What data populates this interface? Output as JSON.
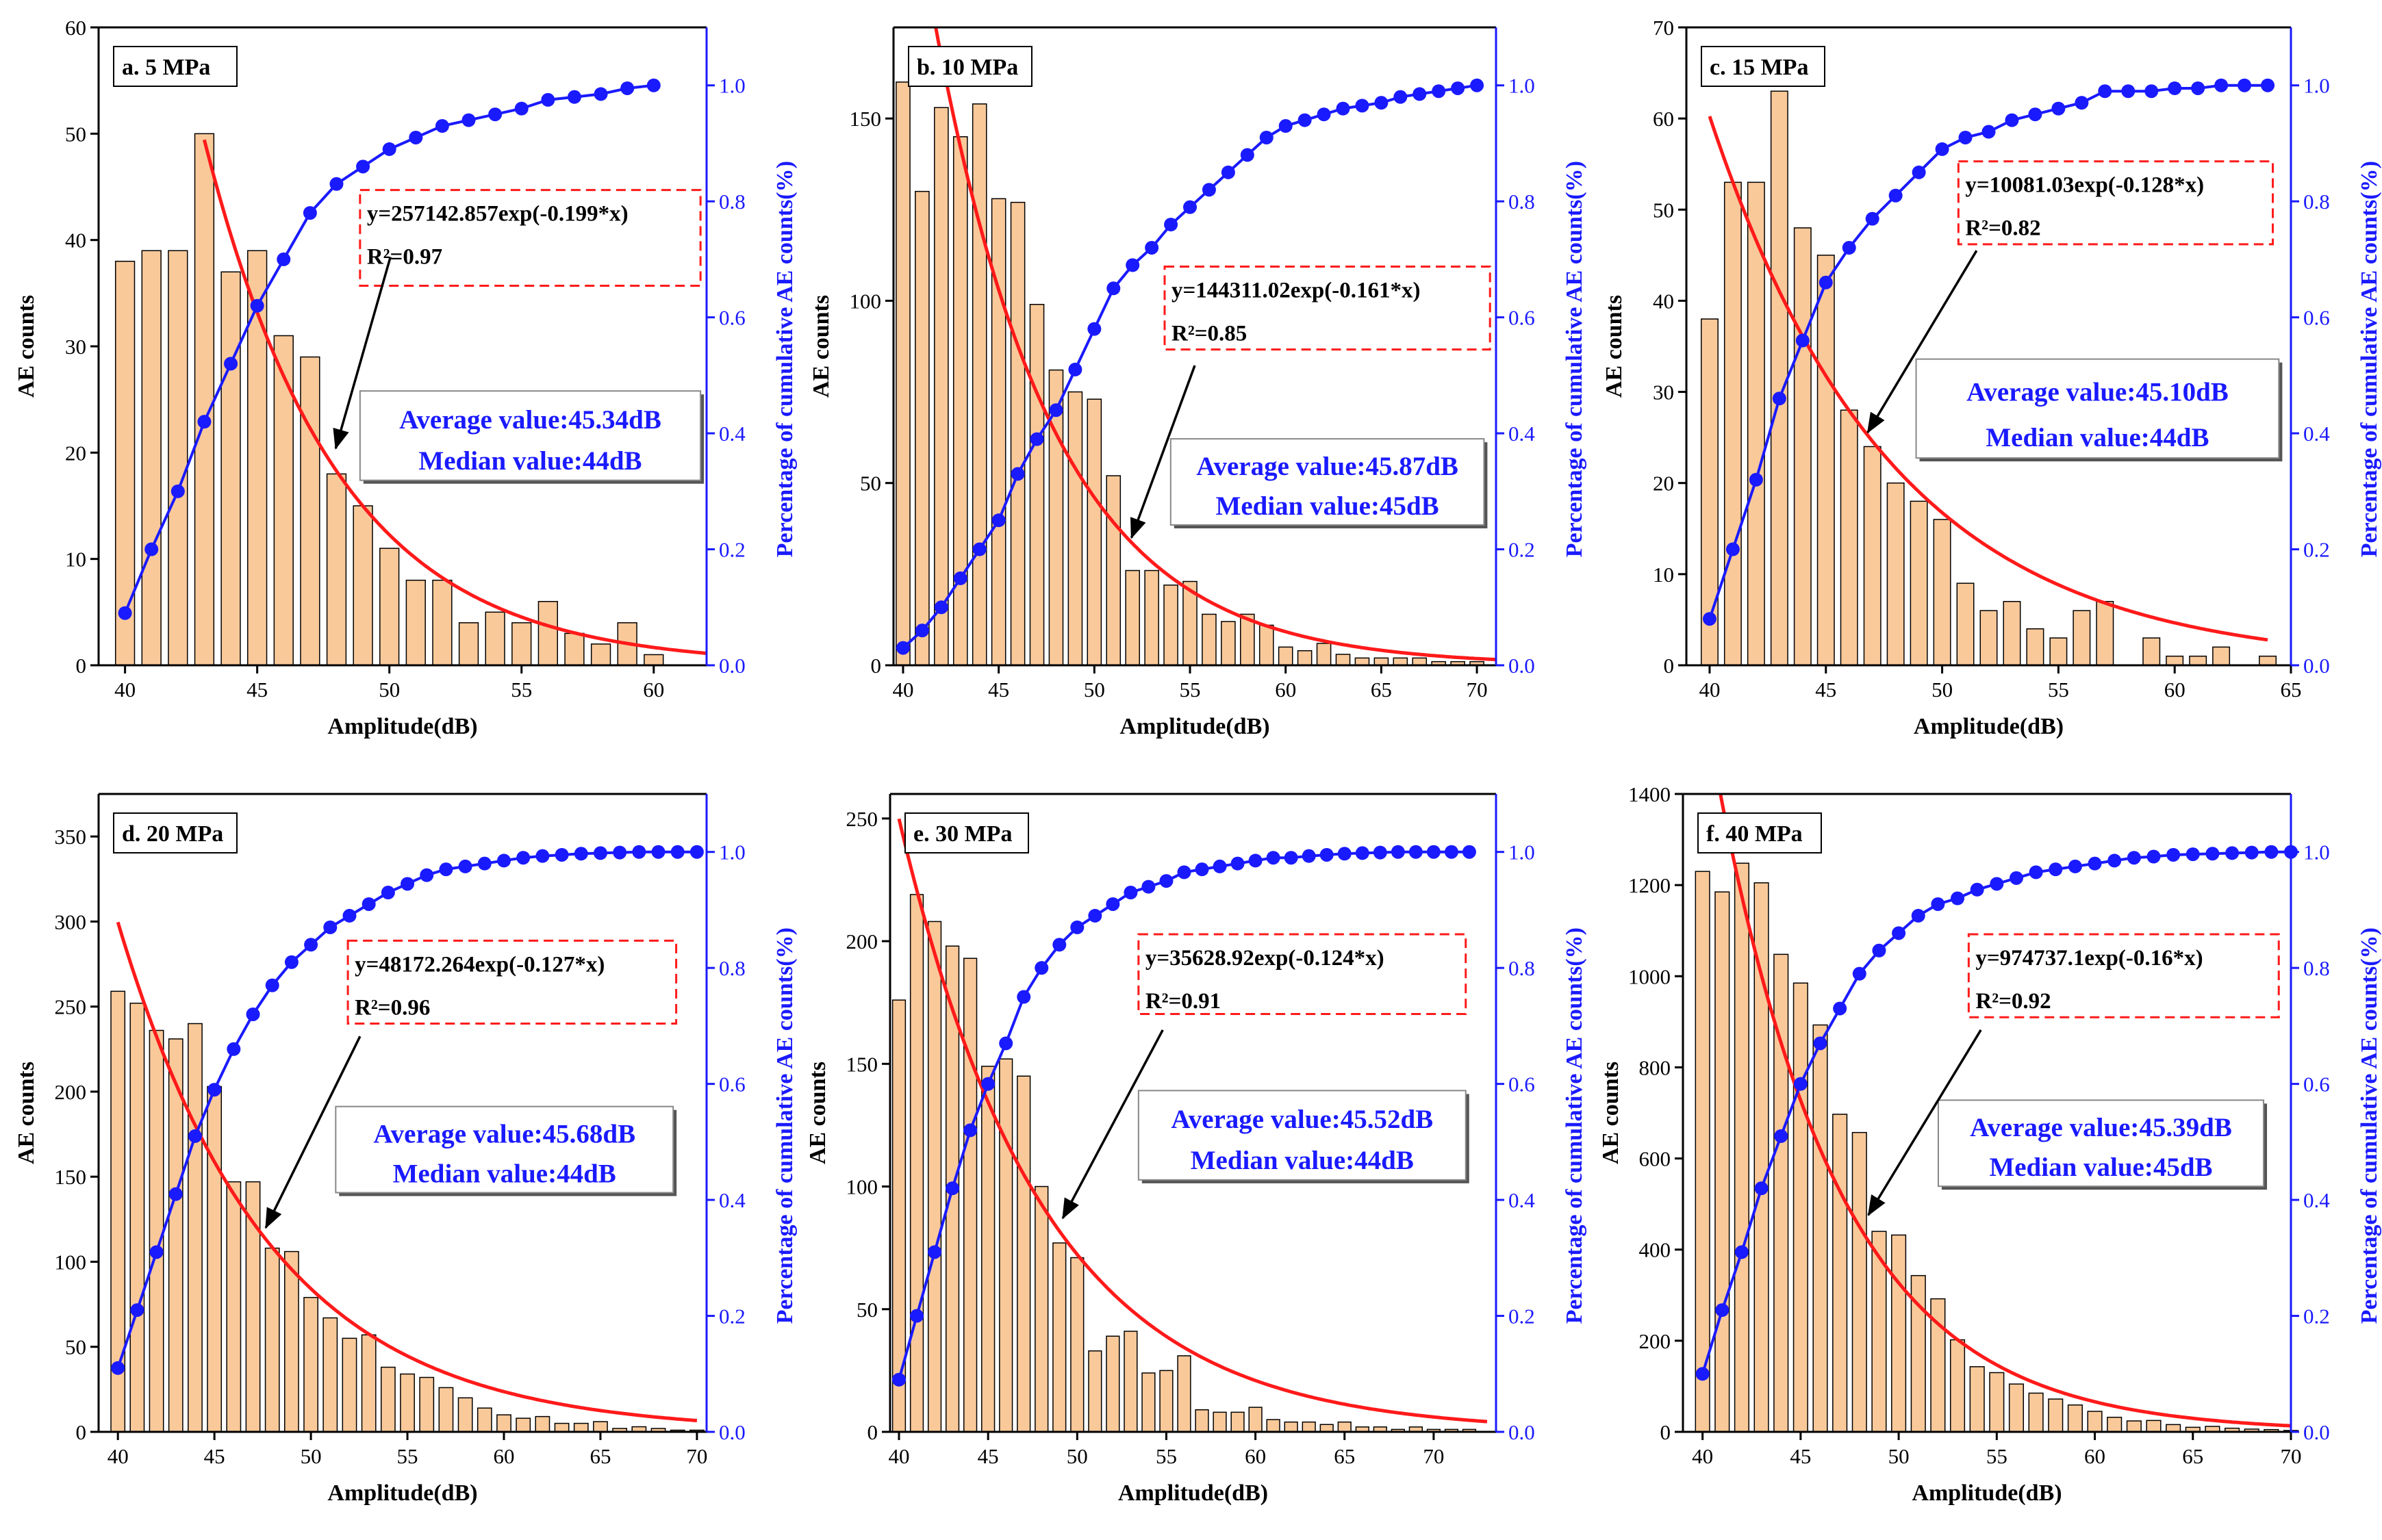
{
  "colors": {
    "bar_fill": "#f9c99a",
    "bar_stroke": "#000000",
    "fit": "#ff1a1a",
    "cumulative": "#1a1aff"
  },
  "chart_data": [
    {
      "type": "bar",
      "label": "a. 5 MPa",
      "xlabel": "Amplitude(dB)",
      "ylabel": "AE counts",
      "y2label": "Percentage of cumulative AE counts(%)",
      "xlim": [
        39,
        62
      ],
      "ylim": [
        0,
        60
      ],
      "y2lim": [
        0,
        1.1
      ],
      "x_ticks": [
        "40",
        "45",
        "50",
        "55",
        "60"
      ],
      "y_ticks": [
        "0",
        "10",
        "20",
        "30",
        "40",
        "50",
        "60"
      ],
      "y2_ticks": [
        "0.0",
        "0.2",
        "0.4",
        "0.6",
        "0.8",
        "1.0"
      ],
      "x": [
        40,
        41,
        42,
        43,
        44,
        45,
        46,
        47,
        48,
        49,
        50,
        51,
        52,
        53,
        54,
        55,
        56,
        57,
        58,
        59,
        60
      ],
      "counts": [
        38,
        39,
        39,
        50,
        37,
        39,
        31,
        29,
        18,
        15,
        11,
        8,
        8,
        4,
        5,
        4,
        6,
        3,
        2,
        4,
        1
      ],
      "cumulative": [
        0.09,
        0.2,
        0.3,
        0.42,
        0.52,
        0.62,
        0.7,
        0.78,
        0.83,
        0.86,
        0.89,
        0.91,
        0.93,
        0.94,
        0.95,
        0.96,
        0.975,
        0.98,
        0.985,
        0.995,
        1.0
      ],
      "fit": {
        "A": 257142.857,
        "b": -0.199,
        "x_range": [
          43,
          62
        ],
        "equation": "y=257142.857exp(-0.199*x)",
        "r2": "R²=0.97"
      },
      "average": "Average value:45.34dB",
      "median": "Median value:44dB"
    },
    {
      "type": "bar",
      "label": "b. 10 MPa",
      "xlabel": "Amplitude(dB)",
      "ylabel": "AE counts",
      "y2label": "Percentage of cumulative AE counts(%)",
      "xlim": [
        39.5,
        71
      ],
      "ylim": [
        0,
        175
      ],
      "y2lim": [
        0,
        1.1
      ],
      "x_ticks": [
        "40",
        "45",
        "50",
        "55",
        "60",
        "65",
        "70"
      ],
      "y_ticks": [
        "0",
        "50",
        "100",
        "150"
      ],
      "y2_ticks": [
        "0.0",
        "0.2",
        "0.4",
        "0.6",
        "0.8",
        "1.0"
      ],
      "x": [
        40,
        41,
        42,
        43,
        44,
        45,
        46,
        47,
        48,
        49,
        50,
        51,
        52,
        53,
        54,
        55,
        56,
        57,
        58,
        59,
        60,
        61,
        62,
        63,
        64,
        65,
        66,
        67,
        68,
        69,
        70
      ],
      "counts": [
        160,
        130,
        153,
        145,
        154,
        128,
        127,
        99,
        81,
        75,
        73,
        52,
        26,
        26,
        22,
        23,
        14,
        12,
        14,
        11,
        5,
        4,
        6,
        3,
        2,
        2,
        2,
        2,
        1,
        1,
        1
      ],
      "cumulative": [
        0.03,
        0.06,
        0.1,
        0.15,
        0.2,
        0.25,
        0.33,
        0.39,
        0.44,
        0.51,
        0.58,
        0.65,
        0.69,
        0.72,
        0.76,
        0.79,
        0.82,
        0.85,
        0.88,
        0.91,
        0.93,
        0.94,
        0.95,
        0.96,
        0.965,
        0.97,
        0.98,
        0.985,
        0.99,
        0.995,
        1.0
      ],
      "fit": {
        "A": 144311.02,
        "b": -0.161,
        "x_range": [
          40,
          71
        ],
        "equation": "y=144311.02exp(-0.161*x)",
        "r2": "R²=0.85"
      },
      "average": "Average value:45.87dB",
      "median": "Median value:45dB"
    },
    {
      "type": "bar",
      "label": "c. 15 MPa",
      "xlabel": "Amplitude(dB)",
      "ylabel": "AE counts",
      "y2label": "Percentage of cumulative AE counts(%)",
      "xlim": [
        39,
        65
      ],
      "ylim": [
        0,
        70
      ],
      "y2lim": [
        0,
        1.1
      ],
      "x_ticks": [
        "40",
        "45",
        "50",
        "55",
        "60",
        "65"
      ],
      "y_ticks": [
        "0",
        "10",
        "20",
        "30",
        "40",
        "50",
        "60",
        "70"
      ],
      "y2_ticks": [
        "0.0",
        "0.2",
        "0.4",
        "0.6",
        "0.8",
        "1.0"
      ],
      "x": [
        40,
        41,
        42,
        43,
        44,
        45,
        46,
        47,
        48,
        49,
        50,
        51,
        52,
        53,
        54,
        55,
        56,
        57,
        58,
        59,
        60,
        61,
        62,
        63,
        64
      ],
      "counts": [
        38,
        53,
        53,
        63,
        48,
        45,
        28,
        24,
        20,
        18,
        16,
        9,
        6,
        7,
        4,
        3,
        6,
        7,
        0,
        3,
        1,
        1,
        2,
        0,
        1
      ],
      "cumulative": [
        0.08,
        0.2,
        0.32,
        0.46,
        0.56,
        0.66,
        0.72,
        0.77,
        0.81,
        0.85,
        0.89,
        0.91,
        0.92,
        0.94,
        0.95,
        0.96,
        0.97,
        0.99,
        0.99,
        0.99,
        0.995,
        0.995,
        1.0,
        1.0,
        1.0
      ],
      "fit": {
        "A": 10081.03,
        "b": -0.128,
        "x_range": [
          40,
          64
        ],
        "equation": "y=10081.03exp(-0.128*x)",
        "r2": "R²=0.82"
      },
      "average": "Average value:45.10dB",
      "median": "Median value:44dB"
    },
    {
      "type": "bar",
      "label": "d. 20 MPa",
      "xlabel": "Amplitude(dB)",
      "ylabel": "AE counts",
      "y2label": "Percentage of cumulative AE counts(%)",
      "xlim": [
        39,
        70.5
      ],
      "ylim": [
        0,
        375
      ],
      "y2lim": [
        0,
        1.1
      ],
      "x_ticks": [
        "40",
        "45",
        "50",
        "55",
        "60",
        "65",
        "70"
      ],
      "y_ticks": [
        "0",
        "50",
        "100",
        "150",
        "200",
        "250",
        "300",
        "350"
      ],
      "y2_ticks": [
        "0.0",
        "0.2",
        "0.4",
        "0.6",
        "0.8",
        "1.0"
      ],
      "x": [
        40,
        41,
        42,
        43,
        44,
        45,
        46,
        47,
        48,
        49,
        50,
        51,
        52,
        53,
        54,
        55,
        56,
        57,
        58,
        59,
        60,
        61,
        62,
        63,
        64,
        65,
        66,
        67,
        68,
        69,
        70
      ],
      "counts": [
        259,
        252,
        236,
        231,
        240,
        203,
        147,
        147,
        108,
        106,
        79,
        67,
        55,
        57,
        38,
        34,
        32,
        26,
        20,
        14,
        10,
        8,
        9,
        5,
        5,
        6,
        2,
        3,
        2,
        1,
        1
      ],
      "cumulative": [
        0.11,
        0.21,
        0.31,
        0.41,
        0.51,
        0.59,
        0.66,
        0.72,
        0.77,
        0.81,
        0.84,
        0.87,
        0.89,
        0.91,
        0.93,
        0.945,
        0.96,
        0.97,
        0.975,
        0.98,
        0.985,
        0.99,
        0.993,
        0.995,
        0.997,
        0.998,
        0.999,
        1,
        1,
        1,
        1
      ],
      "fit": {
        "A": 48172.264,
        "b": -0.127,
        "x_range": [
          40,
          70
        ],
        "equation": "y=48172.264exp(-0.127*x)",
        "r2": "R²=0.96"
      },
      "average": "Average value:45.68dB",
      "median": "Median value:44dB"
    },
    {
      "type": "bar",
      "label": "e. 30 MPa",
      "xlabel": "Amplitude(dB)",
      "ylabel": "AE counts",
      "y2label": "Percentage of cumulative AE counts(%)",
      "xlim": [
        39.5,
        73.5
      ],
      "ylim": [
        0,
        260
      ],
      "y2lim": [
        0,
        1.1
      ],
      "x_ticks": [
        "40",
        "45",
        "50",
        "55",
        "60",
        "65",
        "70"
      ],
      "y_ticks": [
        "0",
        "50",
        "100",
        "150",
        "200",
        "250"
      ],
      "y2_ticks": [
        "0.0",
        "0.2",
        "0.4",
        "0.6",
        "0.8",
        "1.0"
      ],
      "x": [
        40,
        41,
        42,
        43,
        44,
        45,
        46,
        47,
        48,
        49,
        50,
        51,
        52,
        53,
        54,
        55,
        56,
        57,
        58,
        59,
        60,
        61,
        62,
        63,
        64,
        65,
        66,
        67,
        68,
        69,
        70,
        71,
        72
      ],
      "counts": [
        176,
        219,
        208,
        198,
        193,
        149,
        152,
        145,
        100,
        77,
        71,
        33,
        39,
        41,
        24,
        25,
        31,
        9,
        8,
        8,
        10,
        5,
        4,
        4,
        3,
        4,
        2,
        2,
        1,
        2,
        1,
        1,
        1
      ],
      "cumulative": [
        0.09,
        0.2,
        0.31,
        0.42,
        0.52,
        0.6,
        0.67,
        0.75,
        0.8,
        0.84,
        0.87,
        0.89,
        0.91,
        0.93,
        0.94,
        0.95,
        0.965,
        0.97,
        0.975,
        0.98,
        0.985,
        0.99,
        0.99,
        0.993,
        0.995,
        0.997,
        0.998,
        0.999,
        1,
        1,
        1,
        1,
        1
      ],
      "fit": {
        "A": 35628.92,
        "b": -0.124,
        "x_range": [
          40,
          73
        ],
        "equation": "y=35628.92exp(-0.124*x)",
        "r2": "R²=0.91"
      },
      "average": "Average value:45.52dB",
      "median": "Median value:44dB"
    },
    {
      "type": "bar",
      "label": "f. 40 MPa",
      "xlabel": "Amplitude(dB)",
      "ylabel": "AE counts",
      "y2label": "Percentage of cumulative AE counts(%)",
      "xlim": [
        39,
        70
      ],
      "ylim": [
        0,
        1400
      ],
      "y2lim": [
        0,
        1.1
      ],
      "x_ticks": [
        "40",
        "45",
        "50",
        "55",
        "60",
        "65",
        "70"
      ],
      "y_ticks": [
        "0",
        "200",
        "400",
        "600",
        "800",
        "1000",
        "1200",
        "1400"
      ],
      "y2_ticks": [
        "0.0",
        "0.2",
        "0.4",
        "0.6",
        "0.8",
        "1.0"
      ],
      "x": [
        40,
        41,
        42,
        43,
        44,
        45,
        46,
        47,
        48,
        49,
        50,
        51,
        52,
        53,
        54,
        55,
        56,
        57,
        58,
        59,
        60,
        61,
        62,
        63,
        64,
        65,
        66,
        67,
        68,
        69,
        70
      ],
      "counts": [
        1230,
        1185,
        1248,
        1205,
        1048,
        985,
        893,
        697,
        657,
        440,
        432,
        343,
        292,
        202,
        143,
        130,
        105,
        85,
        72,
        59,
        45,
        32,
        24,
        25,
        16,
        10,
        12,
        8,
        6,
        5,
        3
      ],
      "cumulative": [
        0.1,
        0.21,
        0.31,
        0.42,
        0.51,
        0.6,
        0.67,
        0.73,
        0.79,
        0.83,
        0.86,
        0.89,
        0.91,
        0.92,
        0.935,
        0.945,
        0.955,
        0.965,
        0.97,
        0.975,
        0.98,
        0.985,
        0.99,
        0.992,
        0.995,
        0.996,
        0.997,
        0.998,
        0.999,
        1,
        1
      ],
      "fit": {
        "A": 974737.1,
        "b": -0.16,
        "x_range": [
          40,
          70
        ],
        "equation": "y=974737.1exp(-0.16*x)",
        "r2": "R²=0.92"
      },
      "average": "Average value:45.39dB",
      "median": "Median value:45dB"
    }
  ]
}
